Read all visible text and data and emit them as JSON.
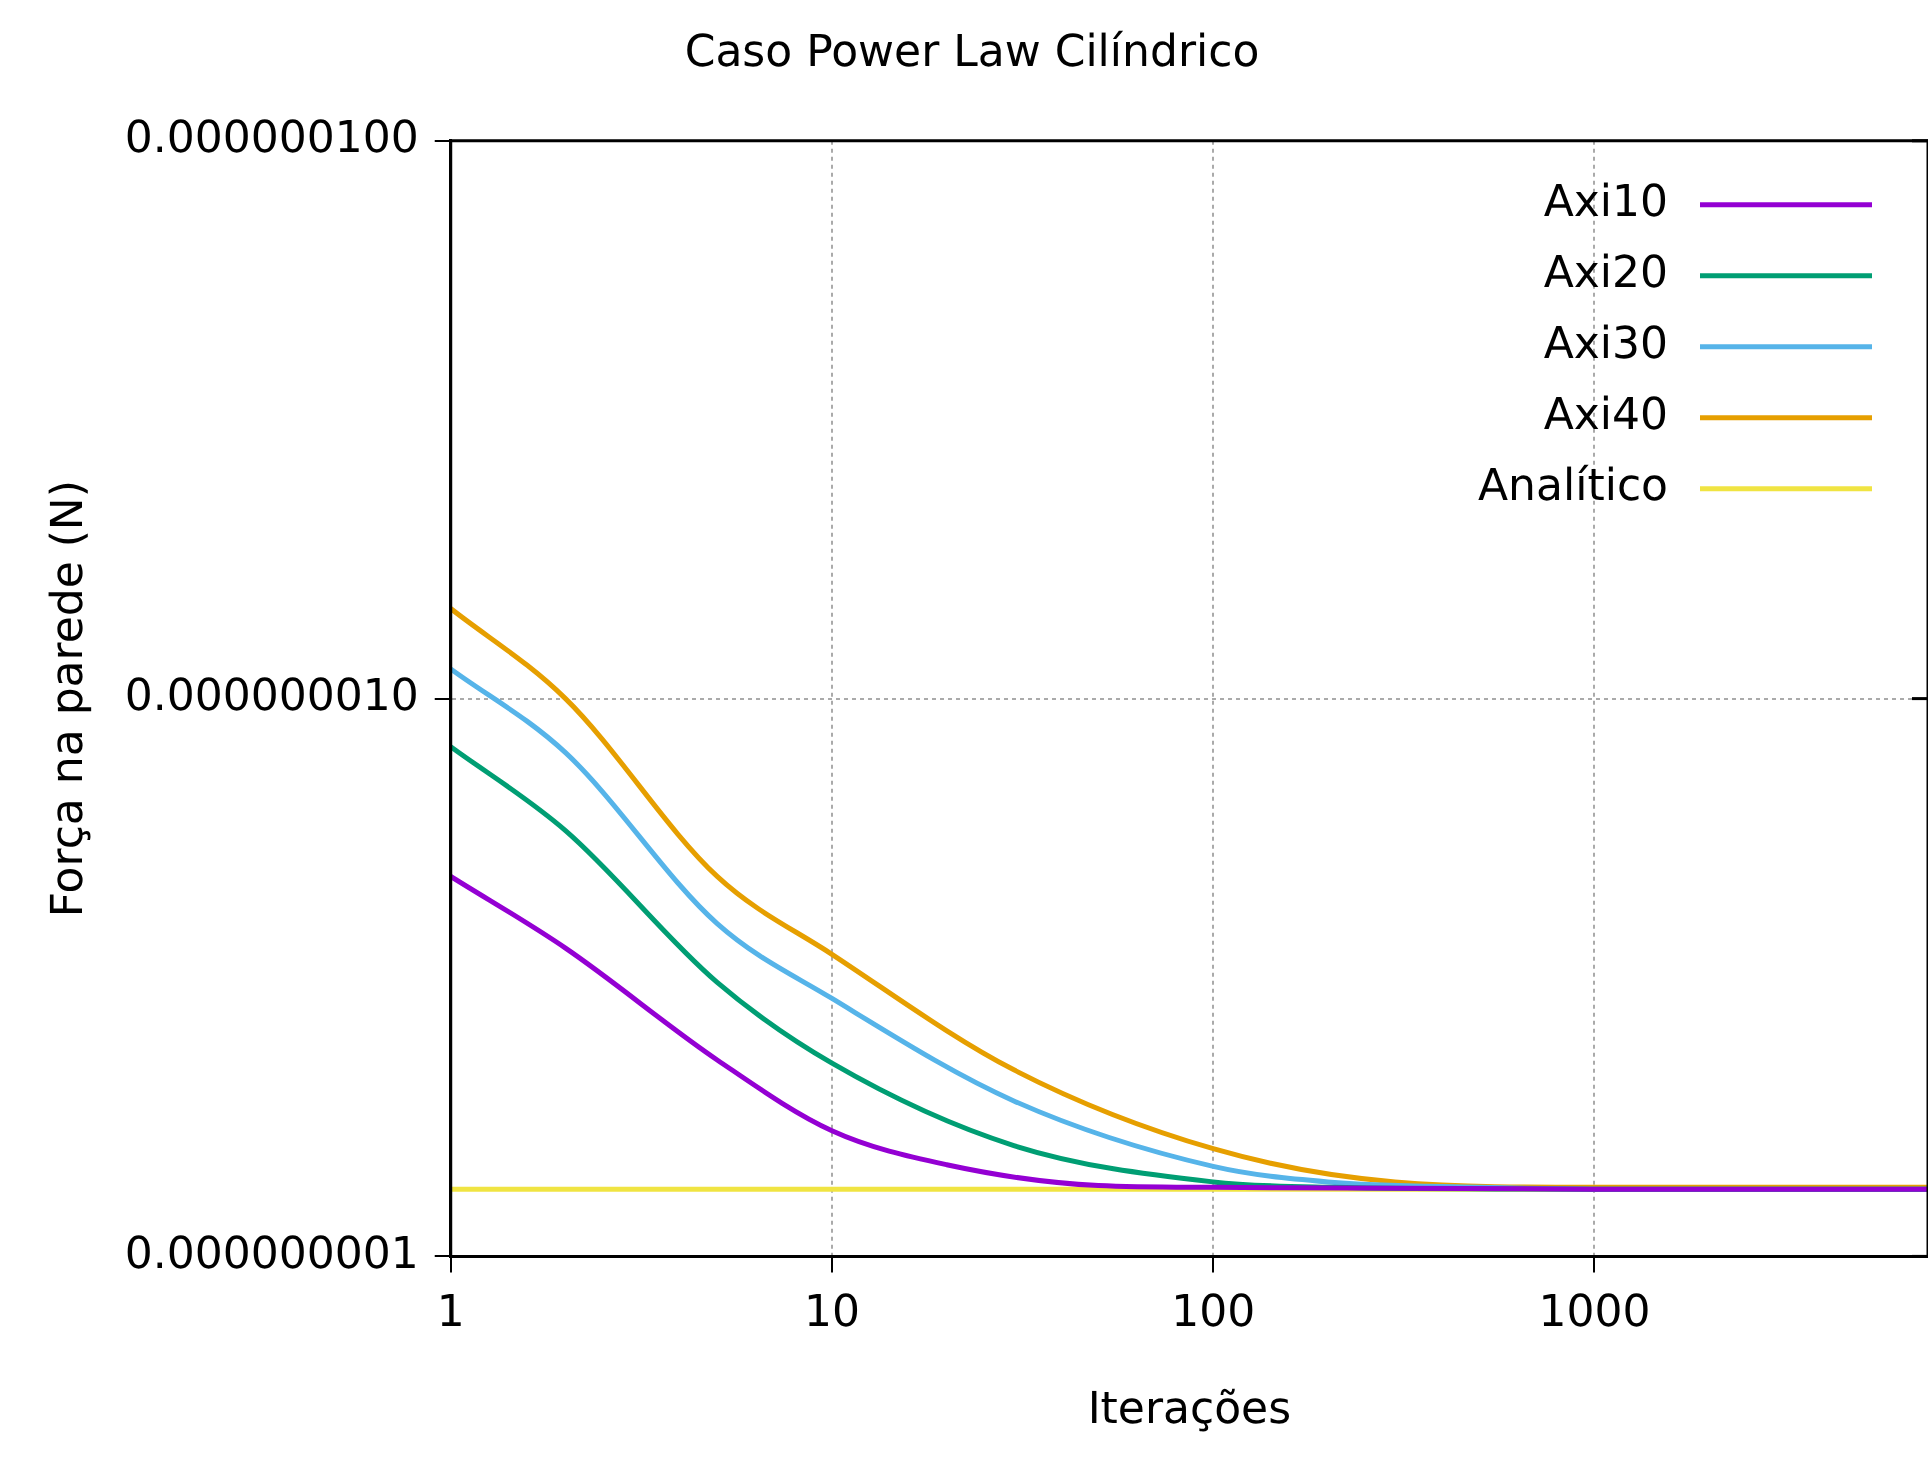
{
  "chart_data": {
    "type": "line",
    "title": "Caso Power Law Cilíndrico",
    "xlabel": "Iterações",
    "ylabel": "Força na parede (N)",
    "log": "xy",
    "grid": true,
    "legend": "top right",
    "line_style": "solid",
    "marker": "none",
    "xlim": [
      1,
      7500
    ],
    "xticks": [
      1,
      10,
      100,
      1000
    ],
    "ylim": [
      1e-09,
      1e-07
    ],
    "yticks": [
      {
        "value": 1e-09,
        "label": "0.000000001"
      },
      {
        "value": 1e-08,
        "label": "0.000000010"
      },
      {
        "value": 1e-07,
        "label": "0.000000100"
      }
    ],
    "series": [
      {
        "name": "Axi10",
        "color": "#9400d3",
        "x": [
          1,
          2,
          5,
          10,
          20,
          50,
          100,
          1000,
          7500
        ],
        "values": [
          4.8e-09,
          3.57e-09,
          2.25e-09,
          1.68e-09,
          1.46e-09,
          1.34e-09,
          1.33e-09,
          1.32e-09,
          1.32e-09
        ]
      },
      {
        "name": "Axi20",
        "color": "#009e73",
        "x": [
          1,
          2,
          5,
          10,
          30,
          100,
          200,
          1000,
          7500
        ],
        "values": [
          8.2e-09,
          5.8e-09,
          3.1e-09,
          2.22e-09,
          1.58e-09,
          1.36e-09,
          1.33e-09,
          1.32e-09,
          1.32e-09
        ]
      },
      {
        "name": "Axi30",
        "color": "#56b4e9",
        "x": [
          1,
          2,
          5,
          10,
          30,
          100,
          200,
          500,
          1000,
          7500
        ],
        "values": [
          1.13e-08,
          8e-09,
          3.95e-09,
          2.9e-09,
          1.9e-09,
          1.45e-09,
          1.36e-09,
          1.33e-09,
          1.32e-09,
          1.32e-09
        ]
      },
      {
        "name": "Axi40",
        "color": "#e69f00",
        "x": [
          1,
          2,
          5,
          10,
          30,
          100,
          300,
          1000,
          7500
        ],
        "values": [
          1.45e-08,
          1e-08,
          4.8e-09,
          3.48e-09,
          2.16e-09,
          1.56e-09,
          1.36e-09,
          1.33e-09,
          1.33e-09
        ]
      },
      {
        "name": "Analítico",
        "color": "#f0e442",
        "x": [
          1,
          7500
        ],
        "values": [
          1.32e-09,
          1.32e-09
        ]
      }
    ]
  }
}
